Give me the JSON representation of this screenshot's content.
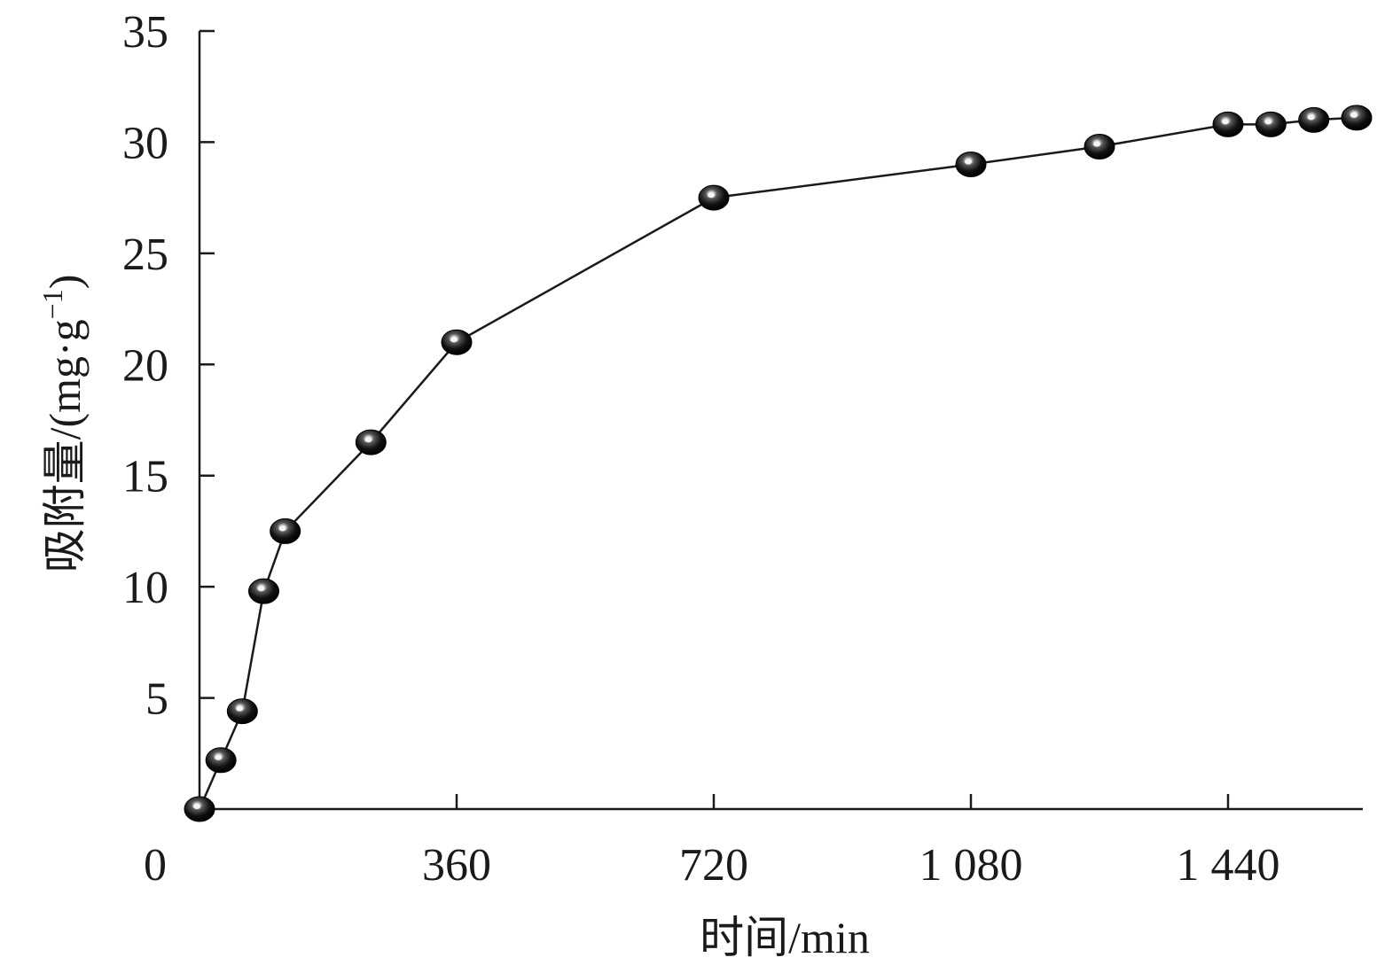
{
  "chart_data": {
    "type": "line",
    "xlabel": "时间/min",
    "ylabel": "吸附量/(mg·g",
    "ylabel_sup": "−1",
    "ylabel_close": ")",
    "xlim": [
      0,
      1620
    ],
    "ylim": [
      0,
      35
    ],
    "x_ticks": [
      360,
      720,
      1080,
      1440
    ],
    "x_tick_labels": [
      "360",
      "720",
      "1 080",
      "1 440"
    ],
    "y_ticks": [
      5,
      10,
      15,
      20,
      25,
      30,
      35
    ],
    "y_tick_labels": [
      "5",
      "10",
      "15",
      "20",
      "25",
      "30",
      "35"
    ],
    "origin_label": "0",
    "grid": false,
    "legend": "none",
    "marker": "black sphere",
    "series": [
      {
        "x": [
          0,
          30,
          60,
          90,
          120,
          240,
          360,
          720,
          1080,
          1260,
          1440,
          1500,
          1560,
          1620
        ],
        "y": [
          0,
          2.2,
          4.4,
          9.8,
          12.5,
          16.5,
          21.0,
          27.5,
          29.0,
          29.8,
          30.8,
          30.8,
          31.0,
          31.1
        ]
      }
    ]
  }
}
